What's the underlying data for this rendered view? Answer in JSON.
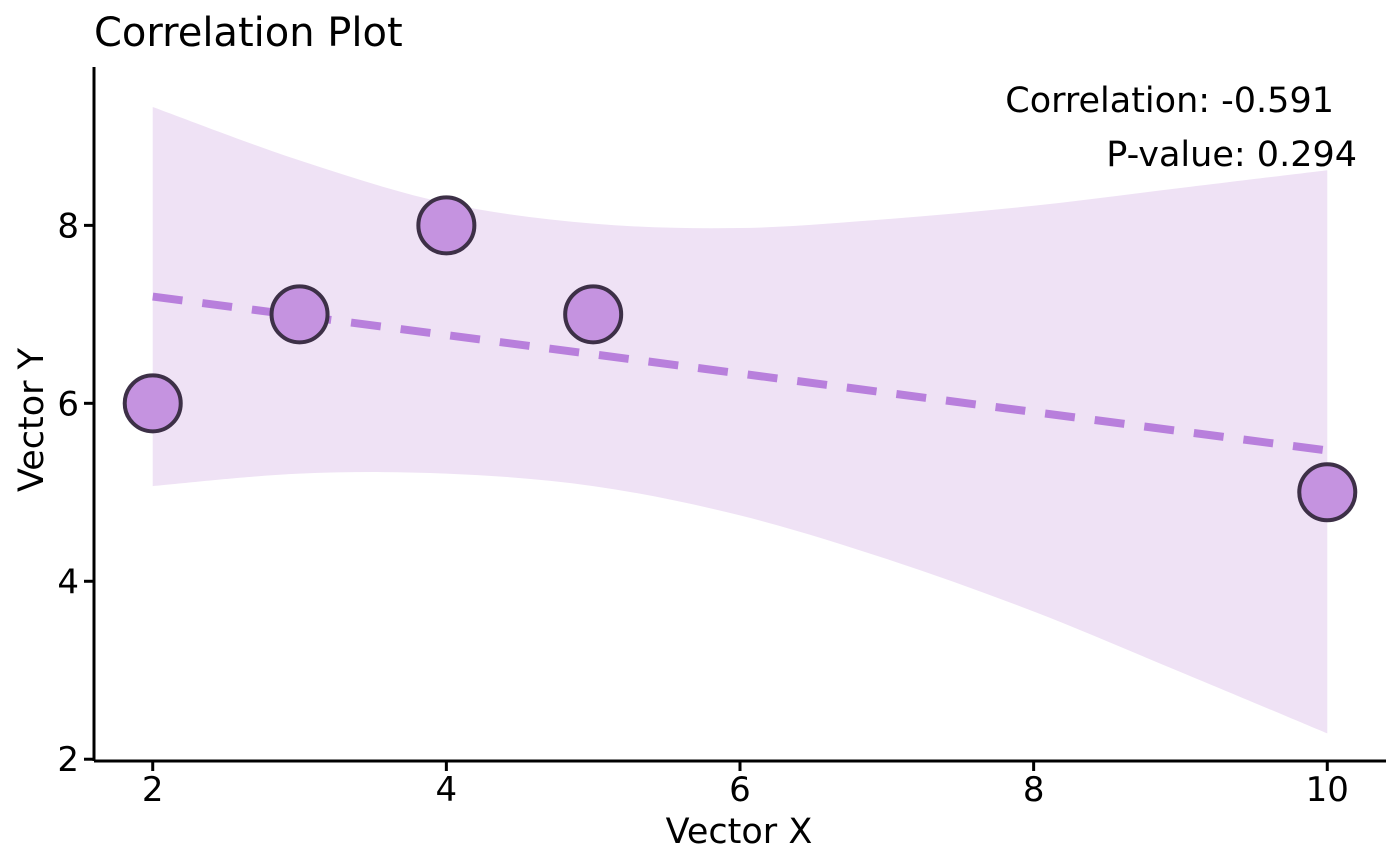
{
  "chart_data": {
    "type": "scatter",
    "title": "Correlation Plot",
    "xlabel": "Vector X",
    "ylabel": "Vector Y",
    "xlim": [
      1.6,
      10.4
    ],
    "ylim": [
      1.98,
      9.78
    ],
    "x_ticks": [
      2,
      4,
      6,
      8,
      10
    ],
    "y_ticks": [
      2,
      4,
      6,
      8
    ],
    "points": [
      {
        "x": 2,
        "y": 6
      },
      {
        "x": 3,
        "y": 7
      },
      {
        "x": 4,
        "y": 8
      },
      {
        "x": 5,
        "y": 7
      },
      {
        "x": 10,
        "y": 5
      }
    ],
    "trend_line": {
      "style": "dashed",
      "x": [
        2,
        10
      ],
      "y": [
        7.2,
        5.47
      ]
    },
    "confidence_band": {
      "x": [
        2,
        3,
        4,
        5,
        6,
        7,
        8,
        9,
        10
      ],
      "upper": [
        9.33,
        8.73,
        8.25,
        8.02,
        7.97,
        8.07,
        8.22,
        8.42,
        8.62
      ],
      "lower": [
        5.07,
        5.21,
        5.21,
        5.07,
        4.74,
        4.25,
        3.66,
        2.98,
        2.29
      ]
    },
    "annotations": [
      "Correlation: -0.591",
      "P-value: 0.294"
    ],
    "grid": false,
    "legend": "none"
  },
  "colors": {
    "point_fill": "#c593e0",
    "point_stroke": "#3d3047",
    "band_fill": "#efe2f5",
    "trend_line": "#b87fdc",
    "axis": "#000000"
  }
}
